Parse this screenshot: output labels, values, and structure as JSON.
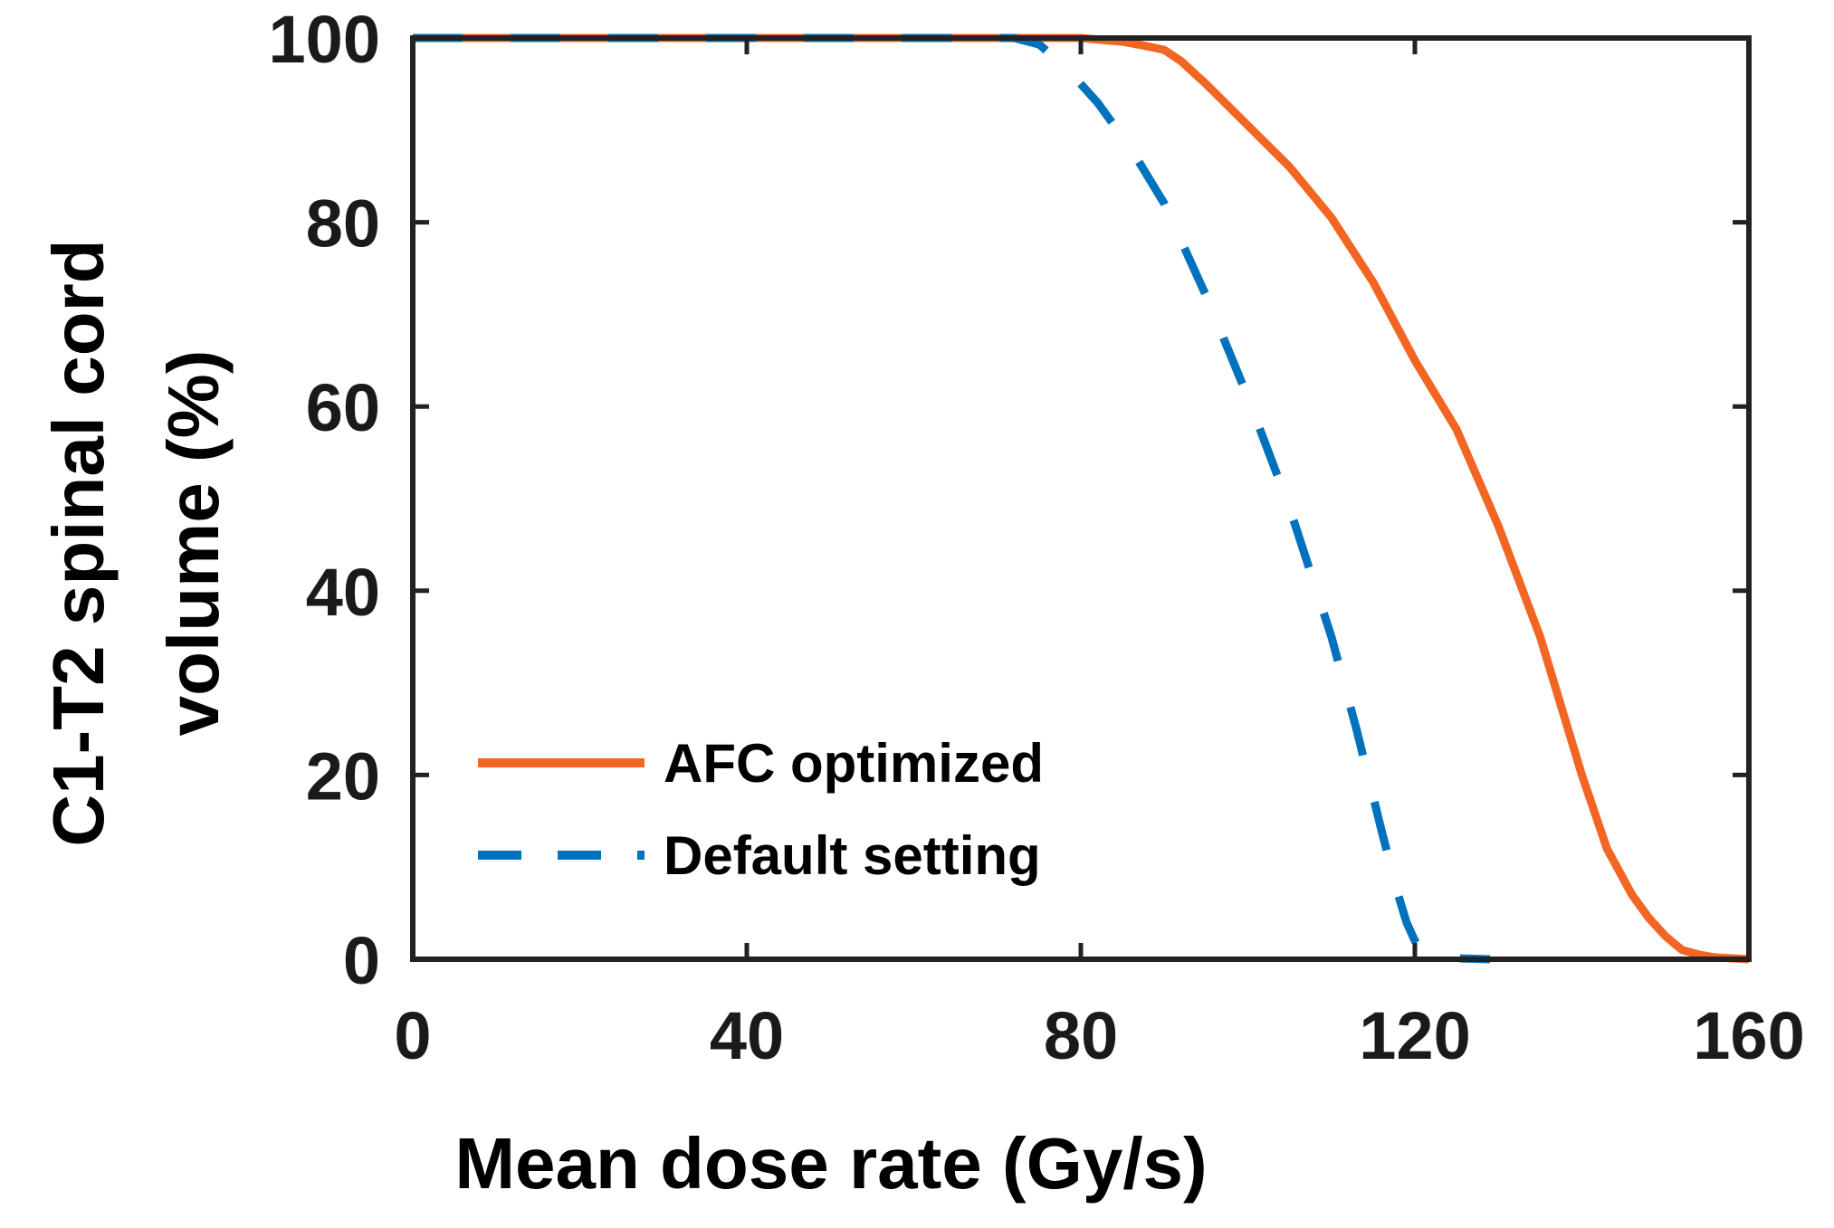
{
  "chart_data": {
    "type": "line",
    "title": "",
    "xlabel": "Mean dose rate (Gy/s)",
    "ylabel_lines": [
      "C1-T2 spinal cord",
      "volume (%)"
    ],
    "xlim": [
      0,
      160
    ],
    "ylim": [
      0,
      100
    ],
    "xticks": [
      0,
      40,
      80,
      120,
      160
    ],
    "yticks": [
      0,
      20,
      40,
      60,
      80,
      100
    ],
    "grid": false,
    "legend_position": "bottom-left",
    "series": [
      {
        "name": "AFC optimized",
        "style": "solid",
        "color": "#f26522",
        "x": [
          0,
          70,
          80,
          85,
          88,
          90,
          92,
          95,
          100,
          105,
          110,
          115,
          120,
          125,
          130,
          135,
          140,
          143,
          146,
          148,
          150,
          152,
          154,
          156,
          158,
          160
        ],
        "y": [
          100,
          100,
          100,
          99.6,
          99.1,
          98.7,
          97.5,
          95.0,
          90.5,
          86.0,
          80.5,
          73.5,
          65.0,
          57.5,
          47.0,
          35.0,
          20.0,
          12.0,
          7.0,
          4.5,
          2.5,
          1.0,
          0.5,
          0.2,
          0.1,
          0
        ]
      },
      {
        "name": "Default setting",
        "style": "dashed",
        "color": "#0072bd",
        "x": [
          0,
          72,
          75,
          78,
          82,
          86,
          90,
          95,
          100,
          105,
          110,
          113,
          116,
          118,
          119,
          120,
          121,
          122,
          123,
          125,
          127,
          129
        ],
        "y": [
          100,
          100,
          99.3,
          97.0,
          93.0,
          88.0,
          82.0,
          72.0,
          61.0,
          49.0,
          35.0,
          25.0,
          14.0,
          7.0,
          4.0,
          2.0,
          1.0,
          0.6,
          0.3,
          0.1,
          0.05,
          0
        ]
      }
    ]
  }
}
